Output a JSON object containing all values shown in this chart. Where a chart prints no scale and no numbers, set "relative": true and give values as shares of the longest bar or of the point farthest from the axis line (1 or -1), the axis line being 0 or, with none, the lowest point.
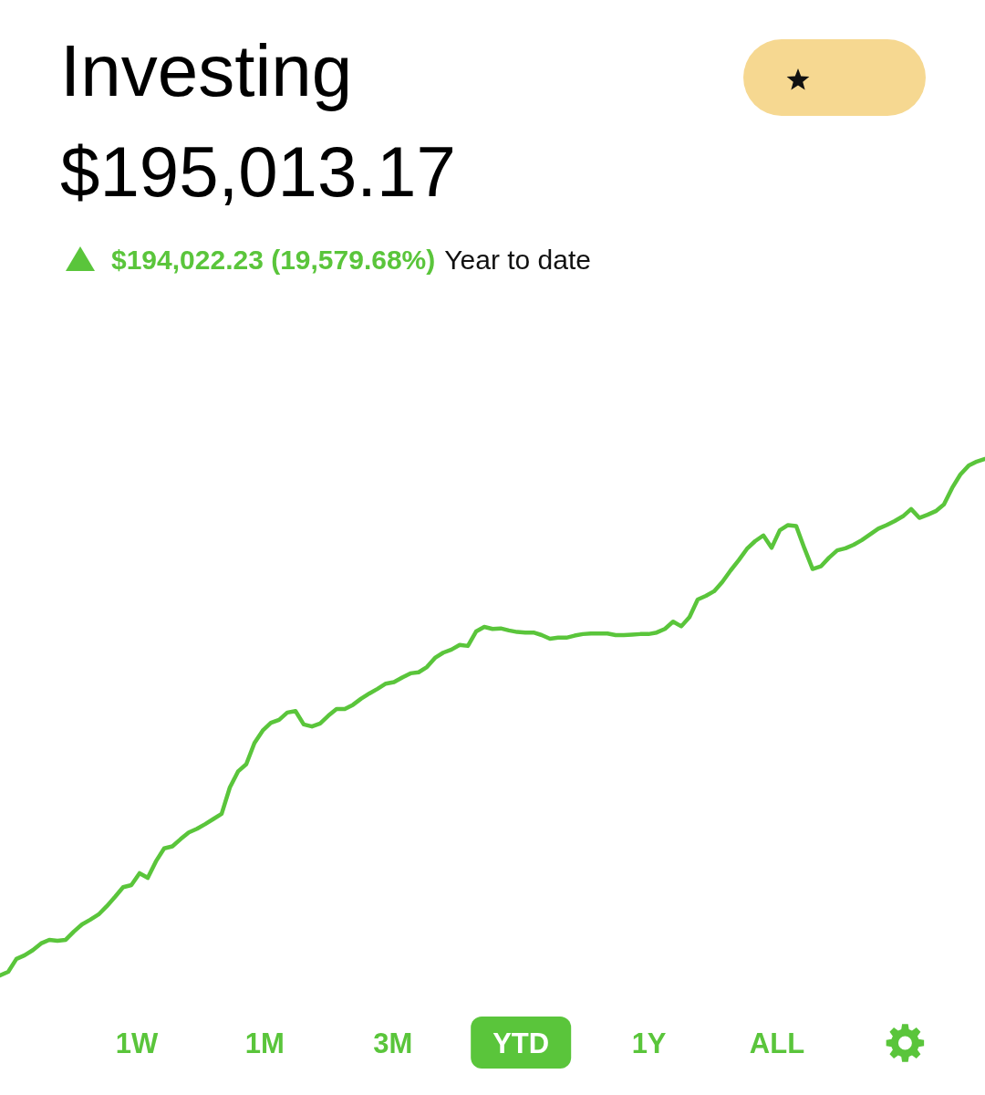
{
  "chart_data": {
    "type": "line",
    "title": "Investing",
    "subtitle": "$195,013.17",
    "annotations": [
      "$194,022.23 (19,579.68%)",
      "Year to date",
      "1W",
      "1M",
      "3M",
      "YTD",
      "1Y",
      "ALL"
    ],
    "relative": true,
    "color": "#5ac53b",
    "categories": [
      null,
      null,
      null,
      null,
      null,
      null,
      null,
      null,
      null,
      null,
      null,
      null,
      null,
      null,
      null,
      null,
      null,
      null,
      null,
      null,
      null,
      null,
      null,
      null,
      null,
      null,
      null,
      null,
      null,
      null,
      null,
      null,
      null,
      null,
      null,
      null,
      null,
      null,
      null,
      null,
      null,
      null,
      null,
      null,
      null,
      null,
      null,
      null,
      null,
      null,
      null,
      null,
      null,
      null,
      null,
      null,
      null,
      null,
      null,
      null,
      null,
      null,
      null,
      null,
      null,
      null,
      null,
      null,
      null,
      null,
      null,
      null,
      null,
      null,
      null,
      null,
      null,
      null,
      null,
      null,
      null,
      null,
      null,
      null,
      null,
      null,
      null,
      null,
      null,
      null,
      null,
      null,
      null,
      null,
      null,
      null,
      null,
      null,
      null,
      null,
      null,
      null,
      null,
      null,
      null,
      null,
      null,
      null,
      null,
      null,
      null,
      null,
      null,
      null,
      null,
      null,
      null,
      null,
      null,
      null,
      null
    ],
    "values": [
      0,
      0.007,
      0.032,
      0.039,
      0.049,
      0.062,
      0.069,
      0.067,
      0.069,
      0.085,
      0.099,
      0.108,
      0.118,
      0.134,
      0.152,
      0.171,
      0.175,
      0.198,
      0.189,
      0.221,
      0.246,
      0.25,
      0.264,
      0.277,
      0.284,
      0.293,
      0.303,
      0.313,
      0.364,
      0.395,
      0.409,
      0.45,
      0.474,
      0.489,
      0.495,
      0.509,
      0.512,
      0.486,
      0.482,
      0.488,
      0.503,
      0.516,
      0.516,
      0.524,
      0.536,
      0.546,
      0.555,
      0.565,
      0.568,
      0.577,
      0.585,
      0.587,
      0.597,
      0.615,
      0.625,
      0.631,
      0.64,
      0.638,
      0.666,
      0.675,
      0.671,
      0.672,
      0.668,
      0.665,
      0.664,
      0.664,
      0.659,
      0.652,
      0.654,
      0.654,
      0.658,
      0.661,
      0.662,
      0.662,
      0.662,
      0.659,
      0.659,
      0.66,
      0.661,
      0.661,
      0.664,
      0.671,
      0.685,
      0.676,
      0.694,
      0.728,
      0.735,
      0.744,
      0.762,
      0.784,
      0.804,
      0.826,
      0.841,
      0.852,
      0.828,
      0.862,
      0.872,
      0.87,
      0.827,
      0.787,
      0.792,
      0.809,
      0.823,
      0.827,
      0.834,
      0.843,
      0.854,
      0.865,
      0.872,
      0.88,
      0.889,
      0.903,
      0.886,
      0.892,
      0.899,
      0.912,
      0.944,
      0.97,
      0.987,
      0.995,
      1
    ]
  }
}
